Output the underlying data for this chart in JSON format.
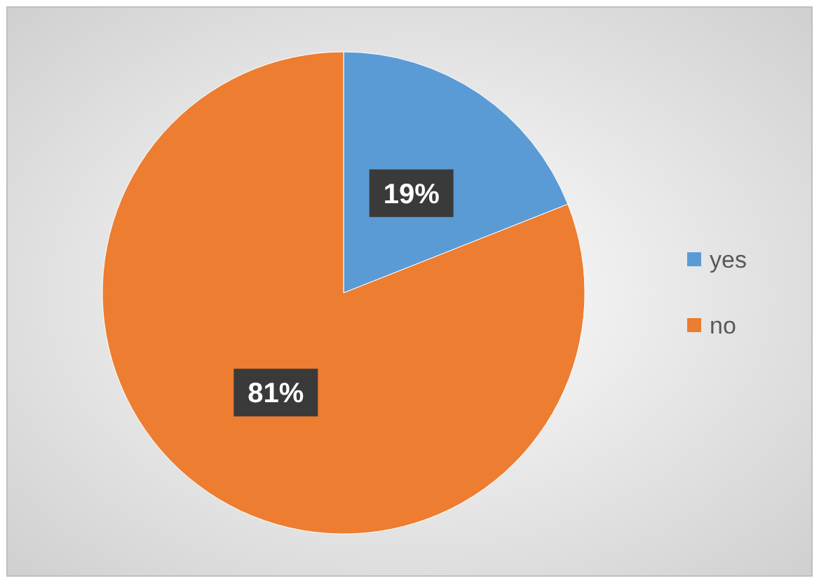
{
  "chart_data": {
    "type": "pie",
    "categories": [
      "yes",
      "no"
    ],
    "values": [
      19,
      81
    ],
    "colors": [
      "#5b9bd5",
      "#ed7d31"
    ],
    "value_labels": [
      "19%",
      "81%"
    ],
    "legend": "right"
  }
}
